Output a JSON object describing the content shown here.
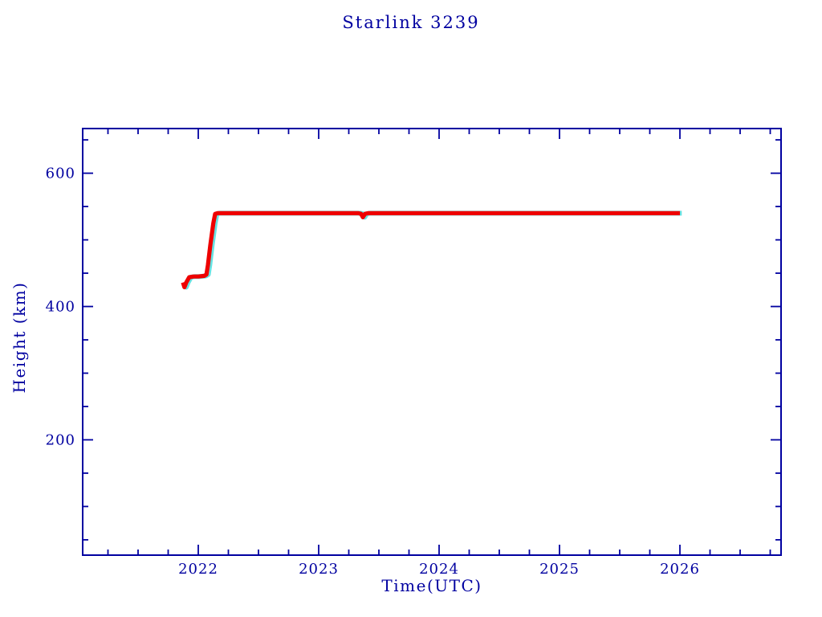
{
  "page": {
    "background": "#ffffff"
  },
  "chart_data": {
    "type": "line",
    "title": "Starlink 3239",
    "xlabel": "Time(UTC)",
    "ylabel": "Height (km)",
    "xlim": [
      2021.04,
      2026.84
    ],
    "ylim": [
      27,
      667
    ],
    "x_major_ticks": [
      2022,
      2023,
      2024,
      2025,
      2026
    ],
    "x_minor_step": 0.25,
    "y_major_ticks": [
      200,
      400,
      600
    ],
    "y_minor_step": 50,
    "grid": false,
    "legend_position": "none",
    "axis_color": "#0000A0",
    "text_color": "#0000A0",
    "series": [
      {
        "name": "height-markers-cyan",
        "color": "#66E2E2",
        "stroke_width": 6,
        "x": [
          2021.873,
          2021.885,
          2021.9,
          2021.925,
          2021.96,
          2022.0,
          2022.05,
          2022.068,
          2022.08,
          2022.1,
          2022.125,
          2022.14,
          2022.16,
          2023.33,
          2023.352,
          2023.367,
          2023.385,
          2023.41,
          2026.0
        ],
        "y": [
          436,
          429,
          436,
          444,
          445,
          445,
          446,
          448,
          462,
          492,
          525,
          539,
          540,
          540,
          539,
          534,
          539,
          540,
          540
        ]
      },
      {
        "name": "height-line-red",
        "color": "#EE0000",
        "stroke_width": 5.2,
        "x": [
          2021.873,
          2021.885,
          2021.9,
          2021.925,
          2021.96,
          2022.0,
          2022.05,
          2022.068,
          2022.08,
          2022.1,
          2022.125,
          2022.14,
          2022.16,
          2023.33,
          2023.352,
          2023.367,
          2023.385,
          2023.41,
          2026.0
        ],
        "y": [
          436,
          429,
          436,
          444,
          445,
          445,
          446,
          448,
          462,
          492,
          525,
          539,
          540,
          540,
          539,
          534,
          539,
          540,
          540
        ]
      }
    ]
  }
}
